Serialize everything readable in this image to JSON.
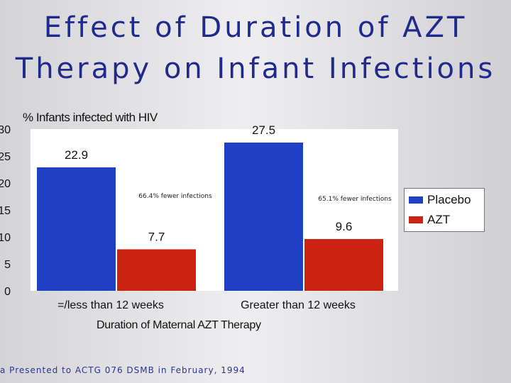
{
  "slide": {
    "title_line1": "Effect of Duration of AZT",
    "title_line2": "Therapy on Infant Infections",
    "footnote": "a Presented to ACTG 076 DSMB in February, 1994"
  },
  "colors": {
    "placebo": "#1f3fc4",
    "azt": "#cc2211",
    "title": "#1f2a8c"
  },
  "chart_data": {
    "type": "bar",
    "title": "Effect of Duration of AZT Therapy on Infant Infections",
    "ylabel": "% Infants infected with HIV",
    "xlabel": "Duration of Maternal AZT Therapy",
    "ylim": [
      0,
      30
    ],
    "yticks": [
      0,
      5,
      10,
      15,
      20,
      25,
      30
    ],
    "categories": [
      "=/less than 12 weeks",
      "Greater than 12 weeks"
    ],
    "series": [
      {
        "name": "Placebo",
        "values": [
          22.9,
          27.5
        ],
        "labels": [
          "22.9",
          "27.5"
        ]
      },
      {
        "name": "AZT",
        "values": [
          7.7,
          9.6
        ],
        "labels": [
          "7.7",
          "9.6"
        ]
      }
    ],
    "annotations": [
      "66.4% fewer infections",
      "65.1% fewer infections"
    ],
    "legend": "right",
    "grid": false
  }
}
